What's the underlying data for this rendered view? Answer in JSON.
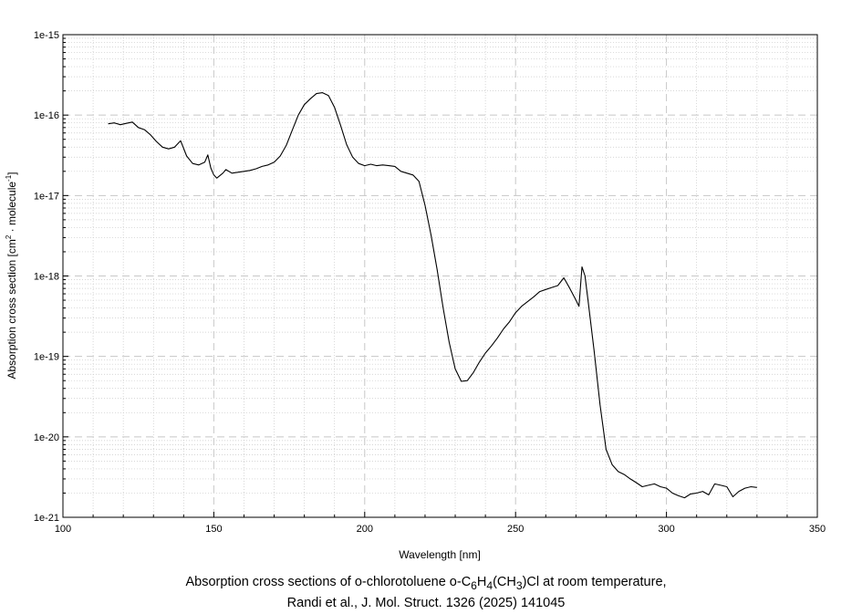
{
  "chart_data": {
    "type": "line",
    "xlabel": "Wavelength [nm]",
    "ylabel_parts": [
      "Absorption cross section [cm",
      "2",
      " · molecule",
      "-1",
      "]"
    ],
    "xlim": [
      100,
      350
    ],
    "ylim": [
      1e-21,
      1e-15
    ],
    "yscale": "log",
    "grid": true,
    "x_ticks": [
      100,
      150,
      200,
      250,
      300,
      350
    ],
    "x_tick_labels": [
      "100",
      "150",
      "200",
      "250",
      "300",
      "350"
    ],
    "y_ticks": [
      1e-21,
      1e-20,
      1e-19,
      1e-18,
      1e-17,
      1e-16,
      1e-15
    ],
    "y_tick_labels": [
      "1e-21",
      "1e-20",
      "1e-19",
      "1e-18",
      "1e-17",
      "1e-16",
      "1e-15"
    ],
    "line_color": "#000000",
    "grid_color": "#c8c8c8",
    "series": [
      {
        "x": [
          115,
          117,
          119,
          121,
          123,
          125,
          127,
          129,
          131,
          133,
          135,
          137,
          139,
          141,
          143,
          145,
          147,
          148,
          149,
          150,
          151,
          153,
          154,
          156,
          158,
          160,
          162,
          164,
          166,
          168,
          170,
          172,
          174,
          176,
          178,
          180,
          182,
          184,
          186,
          188,
          190,
          192,
          194,
          196,
          198,
          200,
          202,
          204,
          206,
          208,
          210,
          212,
          214,
          216,
          218,
          220,
          222,
          224,
          226,
          228,
          230,
          232,
          234,
          236,
          238,
          240,
          242,
          244,
          246,
          248,
          250,
          252,
          254,
          256,
          258,
          260,
          262,
          264,
          266,
          268,
          270,
          271,
          272,
          273,
          274,
          276,
          278,
          280,
          282,
          284,
          286,
          288,
          290,
          292,
          294,
          296,
          298,
          300,
          302,
          304,
          306,
          308,
          310,
          312,
          314,
          316,
          318,
          320,
          322,
          324,
          326,
          328,
          330
        ],
        "y": [
          7.8e-17,
          8e-17,
          7.6e-17,
          7.9e-17,
          8.2e-17,
          7e-17,
          6.6e-17,
          5.7e-17,
          4.7e-17,
          4e-17,
          3.8e-17,
          4e-17,
          4.8e-17,
          3.1e-17,
          2.5e-17,
          2.4e-17,
          2.6e-17,
          3.2e-17,
          2.2e-17,
          1.8e-17,
          1.65e-17,
          1.9e-17,
          2.1e-17,
          1.9e-17,
          1.95e-17,
          2e-17,
          2.05e-17,
          2.15e-17,
          2.3e-17,
          2.4e-17,
          2.6e-17,
          3.1e-17,
          4.2e-17,
          6.5e-17,
          1e-16,
          1.35e-16,
          1.6e-16,
          1.85e-16,
          1.9e-16,
          1.75e-16,
          1.25e-16,
          7.5e-17,
          4.3e-17,
          3e-17,
          2.5e-17,
          2.35e-17,
          2.45e-17,
          2.35e-17,
          2.4e-17,
          2.35e-17,
          2.3e-17,
          2e-17,
          1.9e-17,
          1.8e-17,
          1.5e-17,
          7.5e-18,
          3.2e-18,
          1.2e-18,
          4e-19,
          1.5e-19,
          7e-20,
          4.9e-20,
          5e-20,
          6.3e-20,
          8.5e-20,
          1.1e-19,
          1.35e-19,
          1.7e-19,
          2.2e-19,
          2.7e-19,
          3.5e-19,
          4.2e-19,
          4.8e-19,
          5.5e-19,
          6.4e-19,
          6.8e-19,
          7.2e-19,
          7.6e-19,
          9.5e-19,
          7e-19,
          5e-19,
          4.2e-19,
          1.3e-18,
          1e-18,
          5e-19,
          1.2e-19,
          2.5e-20,
          7e-21,
          4.5e-21,
          3.7e-21,
          3.4e-21,
          3e-21,
          2.7e-21,
          2.4e-21,
          2.5e-21,
          2.6e-21,
          2.4e-21,
          2.3e-21,
          2e-21,
          1.85e-21,
          1.75e-21,
          1.95e-21,
          2e-21,
          2.1e-21,
          1.9e-21,
          2.6e-21,
          2.5e-21,
          2.4e-21,
          1.8e-21,
          2.1e-21,
          2.3e-21,
          2.4e-21,
          2.35e-21
        ]
      }
    ]
  },
  "caption": {
    "line1_parts": [
      "Absorption cross sections of o-chlorotoluene o-C",
      "6",
      "H",
      "4",
      "(CH",
      "3",
      ")Cl at room temperature,"
    ],
    "line2": "Randi et al., J. Mol. Struct. 1326 (2025) 141045"
  }
}
